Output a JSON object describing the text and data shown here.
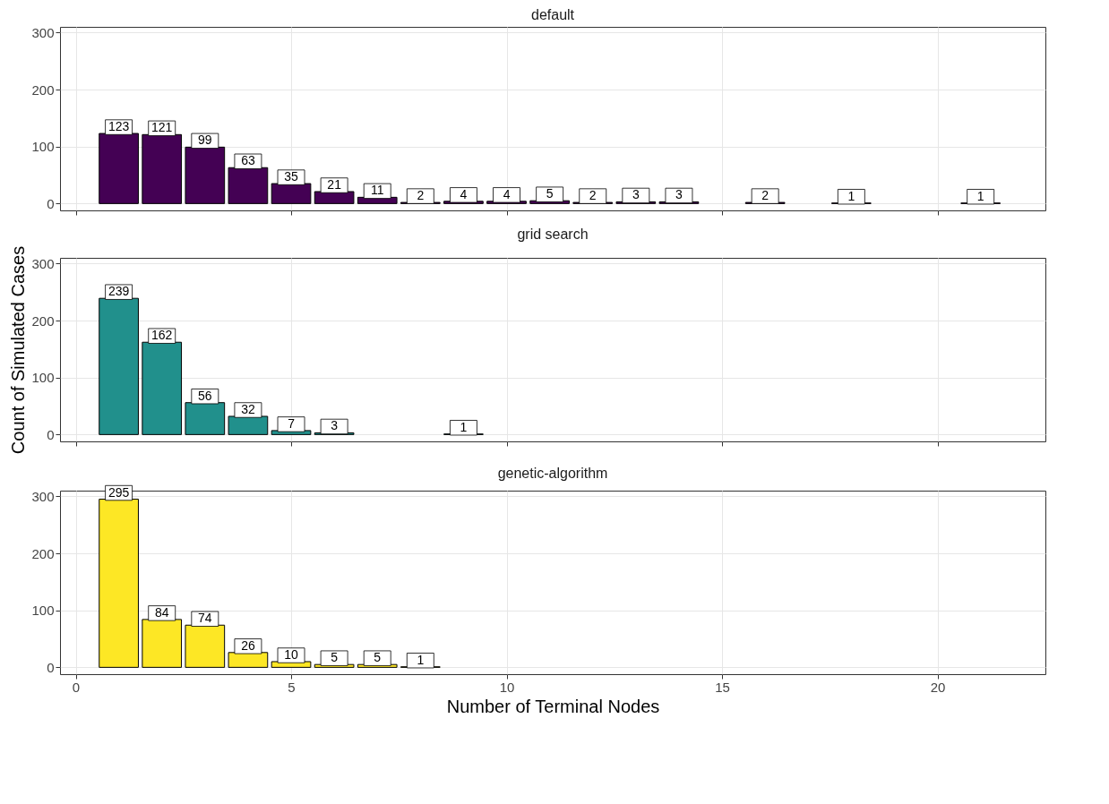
{
  "chart_data": [
    {
      "type": "bar",
      "title": "default",
      "x": [
        1,
        2,
        3,
        4,
        5,
        6,
        7,
        8,
        9,
        10,
        11,
        12,
        13,
        14,
        16,
        18,
        21
      ],
      "series": [
        {
          "color": "#440154",
          "values": [
            123,
            121,
            99,
            63,
            35,
            21,
            11,
            2,
            4,
            4,
            5,
            2,
            3,
            3,
            2,
            1,
            1
          ]
        }
      ],
      "xlim": [
        -0.26,
        22.4
      ],
      "xticks": [
        0,
        5,
        10,
        15,
        20
      ],
      "ylim": [
        -12,
        310
      ],
      "yticks": [
        0,
        100,
        200,
        300
      ],
      "grid": true,
      "data_labels": true,
      "tick_labels": "y"
    },
    {
      "type": "bar",
      "title": "grid search",
      "ylabel": "Count of Simulated Cases",
      "x": [
        1,
        2,
        3,
        4,
        5,
        6,
        9
      ],
      "series": [
        {
          "color": "#21908c",
          "values": [
            239,
            162,
            56,
            32,
            7,
            3,
            1
          ]
        }
      ],
      "xlim": [
        -0.26,
        22.4
      ],
      "xticks": [
        0,
        5,
        10,
        15,
        20
      ],
      "ylim": [
        -12,
        310
      ],
      "yticks": [
        0,
        100,
        200,
        300
      ],
      "grid": true,
      "data_labels": true,
      "tick_labels": "y"
    },
    {
      "type": "bar",
      "title": "genetic-algorithm",
      "xlabel": "Number of Terminal Nodes",
      "x": [
        1,
        2,
        3,
        4,
        5,
        6,
        7,
        8
      ],
      "series": [
        {
          "color": "#fde725",
          "values": [
            295,
            84,
            74,
            26,
            10,
            5,
            5,
            1
          ]
        }
      ],
      "xlim": [
        -0.26,
        22.4
      ],
      "xticks": [
        0,
        5,
        10,
        15,
        20
      ],
      "ylim": [
        -12,
        310
      ],
      "yticks": [
        0,
        100,
        200,
        300
      ],
      "grid": true,
      "data_labels": true
    }
  ]
}
